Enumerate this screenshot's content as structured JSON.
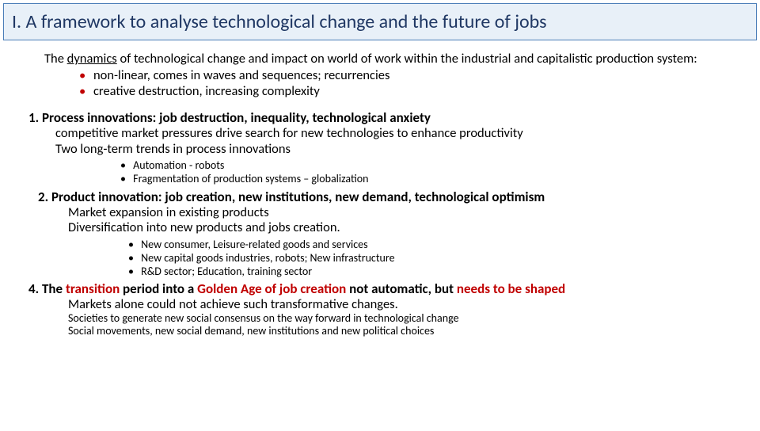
{
  "title": "I. A framework to analyse technological change and the future of jobs",
  "intro_part1": "The ",
  "intro_underlined": "dynamics",
  "intro_part2": " of technological change and impact on world  of work within the industrial and capitalistic production system:",
  "intro_bullets": [
    "non-linear,  comes in waves and sequences; recurrencies",
    "creative destruction, increasing complexity"
  ],
  "h1": "1. Process innovations: job destruction, inequality, technological anxiety",
  "h1_sub1": "competitive market pressures drive search for new technologies to enhance productivity",
  "h1_sub2": "Two long-term trends in process innovations",
  "h1_bullets": [
    "Automation - robots",
    "Fragmentation of production systems – globalization"
  ],
  "h2": "2. Product innovation: job creation, new institutions, new demand, technological optimism",
  "h2_sub1": "Market expansion in existing products",
  "h2_sub2": "Diversification into new products and jobs creation.",
  "h2_bullets": [
    "New consumer, Leisure-related goods and services",
    "New capital goods industries,  robots; New infrastructure",
    "R&D sector; Education, training sector"
  ],
  "h4_pre": "4. The ",
  "h4_red1": "transition",
  "h4_mid1": " period into a ",
  "h4_red2": "Golden Age of job creation",
  "h4_mid2": " not automatic, but ",
  "h4_red3": "needs to be shaped",
  "h4_sub1": "Markets alone could not achieve such transformative changes.",
  "h4_sub2": "Societies to generate new social consensus on the way forward in technological change",
  "h4_sub3": "Social movements,  new social demand, new institutions  and new political choices",
  "colors": {
    "title_bg": "#e8f0f8",
    "title_border": "#4a7db8",
    "title_text": "#203864",
    "accent_red": "#c00000",
    "body_bg": "#ffffff",
    "body_text": "#000000"
  }
}
